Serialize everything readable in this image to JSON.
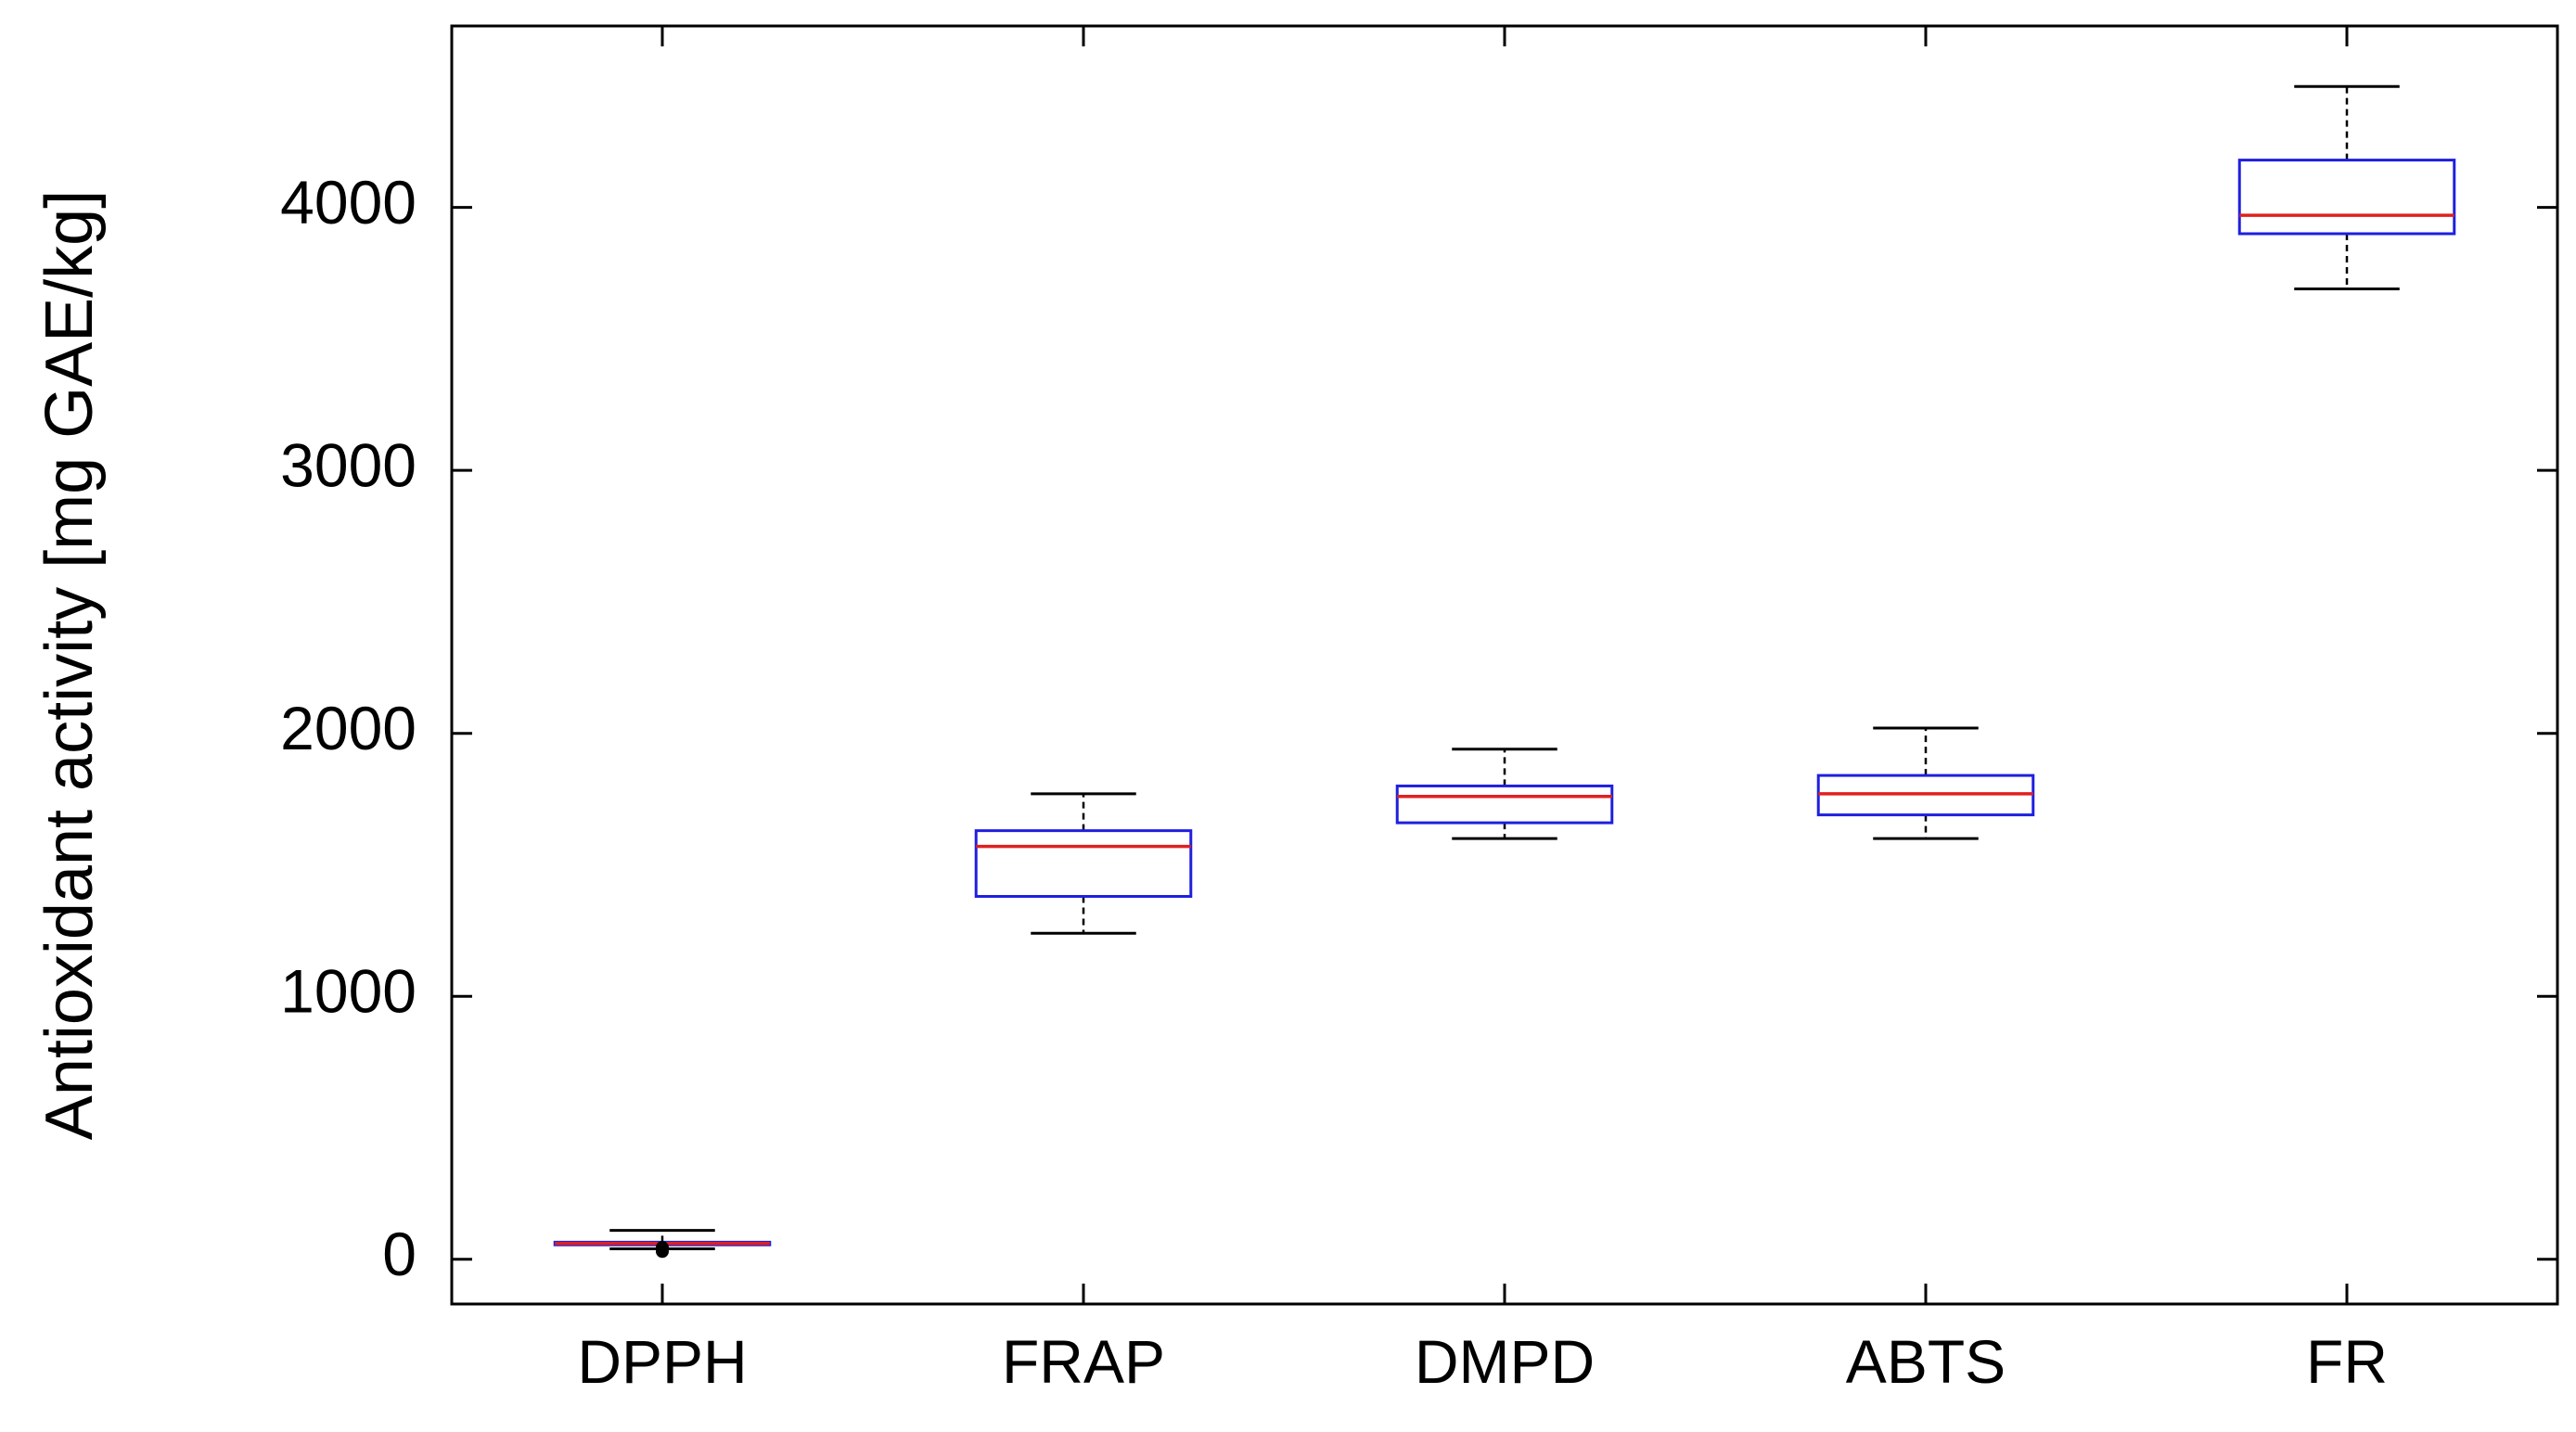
{
  "chart_data": {
    "type": "box",
    "ylabel": "Antioxidant activity [mg GAE/kg]",
    "xlabel": "",
    "ylim": [
      -170,
      4690
    ],
    "yticks": [
      0,
      1000,
      2000,
      3000,
      4000
    ],
    "grid": false,
    "legend": "none",
    "categories": [
      "DPPH",
      "FRAP",
      "DMPD",
      "ABTS",
      "FR"
    ],
    "boxes": [
      {
        "name": "DPPH",
        "whisker_low": 40,
        "q1": 55,
        "median": 60,
        "q3": 65,
        "whisker_high": 110,
        "outliers": [
          30,
          45
        ]
      },
      {
        "name": "FRAP",
        "whisker_low": 1240,
        "q1": 1380,
        "median": 1570,
        "q3": 1630,
        "whisker_high": 1770,
        "outliers": []
      },
      {
        "name": "DMPD",
        "whisker_low": 1600,
        "q1": 1660,
        "median": 1760,
        "q3": 1800,
        "whisker_high": 1940,
        "outliers": []
      },
      {
        "name": "ABTS",
        "whisker_low": 1600,
        "q1": 1690,
        "median": 1770,
        "q3": 1840,
        "whisker_high": 2020,
        "outliers": []
      },
      {
        "name": "FR",
        "whisker_low": 3690,
        "q1": 3900,
        "median": 3970,
        "q3": 4180,
        "whisker_high": 4460,
        "outliers": []
      }
    ],
    "colors": {
      "box": "#1f1fe0",
      "median": "#e02020",
      "whisker": "#000000",
      "axis": "#000000",
      "outlier": "#000000"
    }
  }
}
